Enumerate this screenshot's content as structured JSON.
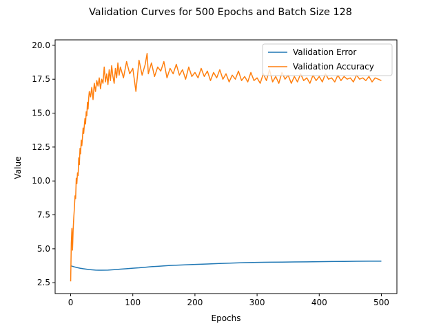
{
  "chart_data": {
    "type": "line",
    "title": "Validation Curves for 500 Epochs and Batch Size 128",
    "xlabel": "Epochs",
    "ylabel": "Value",
    "xlim": [
      -25,
      525
    ],
    "ylim": [
      1.7,
      20.4
    ],
    "xticks": [
      0,
      100,
      200,
      300,
      400,
      500
    ],
    "yticks": [
      2.5,
      5.0,
      7.5,
      10.0,
      12.5,
      15.0,
      17.5,
      20.0
    ],
    "xtick_labels": [
      "0",
      "100",
      "200",
      "300",
      "400",
      "500"
    ],
    "ytick_labels": [
      "2.5",
      "5.0",
      "7.5",
      "10.0",
      "12.5",
      "15.0",
      "17.5",
      "20.0"
    ],
    "grid": false,
    "legend_position": "top-right",
    "series": [
      {
        "name": "Validation Error",
        "color": "#1f77b4",
        "x": [
          0,
          5,
          10,
          15,
          20,
          25,
          30,
          35,
          40,
          45,
          50,
          60,
          70,
          80,
          90,
          100,
          110,
          120,
          130,
          140,
          150,
          160,
          170,
          180,
          190,
          200,
          220,
          240,
          260,
          280,
          300,
          320,
          340,
          360,
          380,
          400,
          420,
          440,
          460,
          480,
          500
        ],
        "y": [
          3.75,
          3.68,
          3.62,
          3.57,
          3.53,
          3.5,
          3.47,
          3.45,
          3.43,
          3.42,
          3.42,
          3.43,
          3.46,
          3.5,
          3.53,
          3.57,
          3.6,
          3.64,
          3.68,
          3.71,
          3.74,
          3.77,
          3.79,
          3.81,
          3.83,
          3.85,
          3.88,
          3.92,
          3.95,
          3.98,
          4.0,
          4.01,
          4.02,
          4.03,
          4.04,
          4.05,
          4.06,
          4.07,
          4.08,
          4.09,
          4.09
        ]
      },
      {
        "name": "Validation Accuracy",
        "color": "#ff7f0e",
        "x": [
          0,
          1,
          2,
          3,
          4,
          5,
          6,
          7,
          8,
          9,
          10,
          11,
          12,
          13,
          14,
          15,
          16,
          17,
          18,
          19,
          20,
          21,
          22,
          23,
          24,
          25,
          26,
          27,
          28,
          29,
          30,
          32,
          34,
          36,
          38,
          40,
          42,
          44,
          46,
          48,
          50,
          52,
          54,
          56,
          58,
          60,
          62,
          64,
          66,
          68,
          70,
          72,
          74,
          76,
          78,
          80,
          85,
          90,
          95,
          100,
          105,
          110,
          115,
          120,
          123,
          125,
          130,
          135,
          140,
          145,
          150,
          155,
          160,
          165,
          170,
          175,
          180,
          185,
          190,
          195,
          200,
          205,
          210,
          215,
          220,
          225,
          230,
          235,
          240,
          245,
          250,
          255,
          260,
          265,
          270,
          275,
          280,
          285,
          290,
          295,
          300,
          305,
          310,
          315,
          320,
          325,
          330,
          335,
          340,
          345,
          350,
          355,
          360,
          365,
          370,
          375,
          380,
          385,
          390,
          395,
          400,
          405,
          410,
          415,
          420,
          425,
          430,
          435,
          440,
          445,
          450,
          455,
          460,
          465,
          470,
          475,
          480,
          485,
          490,
          495,
          500
        ],
        "y": [
          2.6,
          5.4,
          6.5,
          4.9,
          6.4,
          7.3,
          8.0,
          8.9,
          8.7,
          10.2,
          9.8,
          10.6,
          10.4,
          11.7,
          11.2,
          12.4,
          12.0,
          13.0,
          12.6,
          13.2,
          13.9,
          13.5,
          14.1,
          14.6,
          14.2,
          15.1,
          14.8,
          15.8,
          15.3,
          16.1,
          16.6,
          16.2,
          16.9,
          16.0,
          17.2,
          16.6,
          17.4,
          17.0,
          17.6,
          16.8,
          17.5,
          17.2,
          18.4,
          17.3,
          17.9,
          17.1,
          18.2,
          17.4,
          18.5,
          17.7,
          17.2,
          18.3,
          17.6,
          18.7,
          17.8,
          18.4,
          17.6,
          18.8,
          17.9,
          18.3,
          16.6,
          18.9,
          17.8,
          18.6,
          19.4,
          17.9,
          18.7,
          17.7,
          18.4,
          18.1,
          18.8,
          17.6,
          18.3,
          17.9,
          18.6,
          17.8,
          18.2,
          17.5,
          18.4,
          17.7,
          18.0,
          17.6,
          18.3,
          17.7,
          18.1,
          17.4,
          18.0,
          17.6,
          18.2,
          17.5,
          17.9,
          17.3,
          17.8,
          17.5,
          18.1,
          17.4,
          17.7,
          17.3,
          18.0,
          17.4,
          17.6,
          17.2,
          17.9,
          17.4,
          18.2,
          17.3,
          17.7,
          17.2,
          18.0,
          17.5,
          17.8,
          17.2,
          17.7,
          17.3,
          17.9,
          17.4,
          17.6,
          17.2,
          17.8,
          17.4,
          17.7,
          17.3,
          17.9,
          17.5,
          17.6,
          17.3,
          17.8,
          17.4,
          17.7,
          17.5,
          17.6,
          17.3,
          17.8,
          17.5,
          17.6,
          17.4,
          17.7,
          17.3,
          17.6,
          17.5,
          17.4
        ]
      }
    ]
  }
}
